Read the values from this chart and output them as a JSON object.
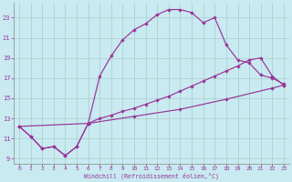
{
  "xlabel": "Windchill (Refroidissement éolien,°C)",
  "bg_color": "#c8eaf0",
  "line_color": "#993399",
  "grid_color": "#aacccc",
  "spine_color": "#888888",
  "xlim": [
    -0.5,
    23.5
  ],
  "ylim": [
    8.5,
    24.5
  ],
  "xticks": [
    0,
    1,
    2,
    3,
    4,
    5,
    6,
    7,
    8,
    9,
    10,
    11,
    12,
    13,
    14,
    15,
    16,
    17,
    18,
    19,
    20,
    21,
    22,
    23
  ],
  "yticks": [
    9,
    11,
    13,
    15,
    17,
    19,
    21,
    23
  ],
  "curve1_x": [
    0,
    1,
    2,
    3,
    4,
    5,
    6,
    7,
    8,
    9,
    10,
    11,
    12,
    13,
    14,
    15,
    16,
    17,
    18,
    19,
    20,
    21,
    22,
    23
  ],
  "curve1_y": [
    12.2,
    11.2,
    10.0,
    10.2,
    9.3,
    10.2,
    12.5,
    17.2,
    19.2,
    20.8,
    21.8,
    22.4,
    23.3,
    23.8,
    23.8,
    23.5,
    22.5,
    23.0,
    20.3,
    18.8,
    18.5,
    17.3,
    17.0,
    16.4
  ],
  "curve2_x": [
    0,
    1,
    2,
    3,
    4,
    5,
    6,
    7,
    8,
    9,
    10,
    11,
    12,
    13,
    14,
    15,
    16,
    17,
    18,
    19,
    20,
    21,
    22,
    23
  ],
  "curve2_y": [
    12.2,
    11.2,
    10.0,
    10.2,
    9.3,
    10.2,
    12.5,
    13.0,
    13.3,
    13.7,
    14.0,
    14.4,
    14.8,
    15.2,
    15.7,
    16.2,
    16.7,
    17.2,
    17.7,
    18.2,
    18.8,
    19.0,
    17.2,
    16.3
  ],
  "curve3_x": [
    0,
    6,
    10,
    14,
    18,
    22,
    23
  ],
  "curve3_y": [
    12.2,
    12.5,
    13.2,
    13.9,
    14.9,
    16.0,
    16.3
  ]
}
